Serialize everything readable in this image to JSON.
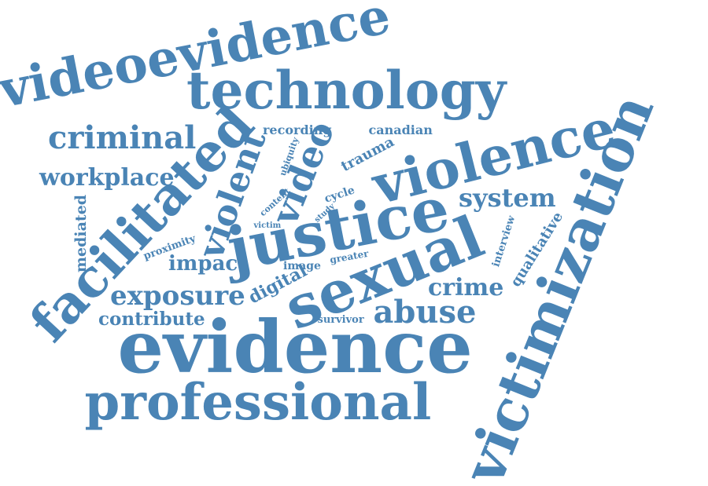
{
  "color": "#4a84b5",
  "words": {
    "videoevidence": "videoevidence",
    "technology": "technology",
    "criminal": "criminal",
    "facilitated": "facilitated",
    "violent": "violent",
    "video": "video",
    "violence": "violence",
    "justice": "justice",
    "sexual": "sexual",
    "victimization": "victimization",
    "evidence": "evidence",
    "professional": "professional",
    "exposure": "exposure",
    "contribute": "contribute",
    "workplace": "workplace",
    "mediated": "mediated",
    "proximity": "proximity",
    "impact": "impact",
    "digital": "digital",
    "image": "image",
    "crime": "crime",
    "abuse": "abuse",
    "survivor": "survivor",
    "system": "system",
    "qualitative": "qualitative",
    "interview": "interview",
    "greater": "greater",
    "recording": "recording",
    "canadian": "canadian",
    "ubiquity": "ubiquity",
    "trauma": "trauma",
    "content": "content",
    "cycle": "cycle",
    "study": "study",
    "victim": "victim"
  }
}
